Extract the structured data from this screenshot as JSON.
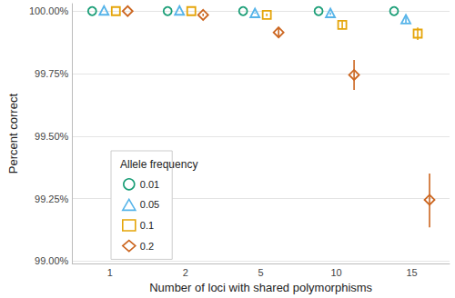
{
  "chart_data": {
    "type": "scatter",
    "x_label": "Number of loci with shared polymorphisms",
    "y_label": "Percent correct",
    "categories": [
      "1",
      "2",
      "5",
      "10",
      "15"
    ],
    "series": [
      {
        "name": "0.01",
        "color": "#1b9e77",
        "marker": "circle",
        "values": [
          100,
          100,
          100,
          100,
          100
        ],
        "lower": [
          100,
          100,
          100,
          100,
          100
        ],
        "upper": [
          100,
          100,
          100,
          100,
          100
        ]
      },
      {
        "name": "0.05",
        "color": "#56b4e9",
        "marker": "triangle",
        "values": [
          100,
          100,
          99.99,
          99.99,
          99.965
        ],
        "lower": [
          100,
          100,
          99.99,
          99.985,
          99.95
        ],
        "upper": [
          100,
          100,
          99.995,
          99.995,
          99.978
        ]
      },
      {
        "name": "0.1",
        "color": "#e5a50a",
        "marker": "square",
        "values": [
          100,
          100,
          99.985,
          99.945,
          99.91
        ],
        "lower": [
          100,
          100,
          99.98,
          99.93,
          99.885
        ],
        "upper": [
          100,
          100,
          99.99,
          99.96,
          99.935
        ]
      },
      {
        "name": "0.2",
        "color": "#cc6620",
        "marker": "diamond",
        "values": [
          100,
          99.985,
          99.915,
          99.745,
          99.245
        ],
        "lower": [
          100,
          99.98,
          99.895,
          99.685,
          99.135
        ],
        "upper": [
          100,
          99.99,
          99.935,
          99.805,
          99.35
        ]
      }
    ],
    "ylim": [
      98.99,
      100.03
    ],
    "yticks": [
      {
        "value": 99,
        "label": "99.00%"
      },
      {
        "value": 99.25,
        "label": "99.25%"
      },
      {
        "value": 99.5,
        "label": "99.50%"
      },
      {
        "value": 99.75,
        "label": "99.75%"
      },
      {
        "value": 100,
        "label": "100.00%"
      }
    ],
    "grid": true,
    "legend": "left",
    "legend_title": "Allele frequency"
  }
}
